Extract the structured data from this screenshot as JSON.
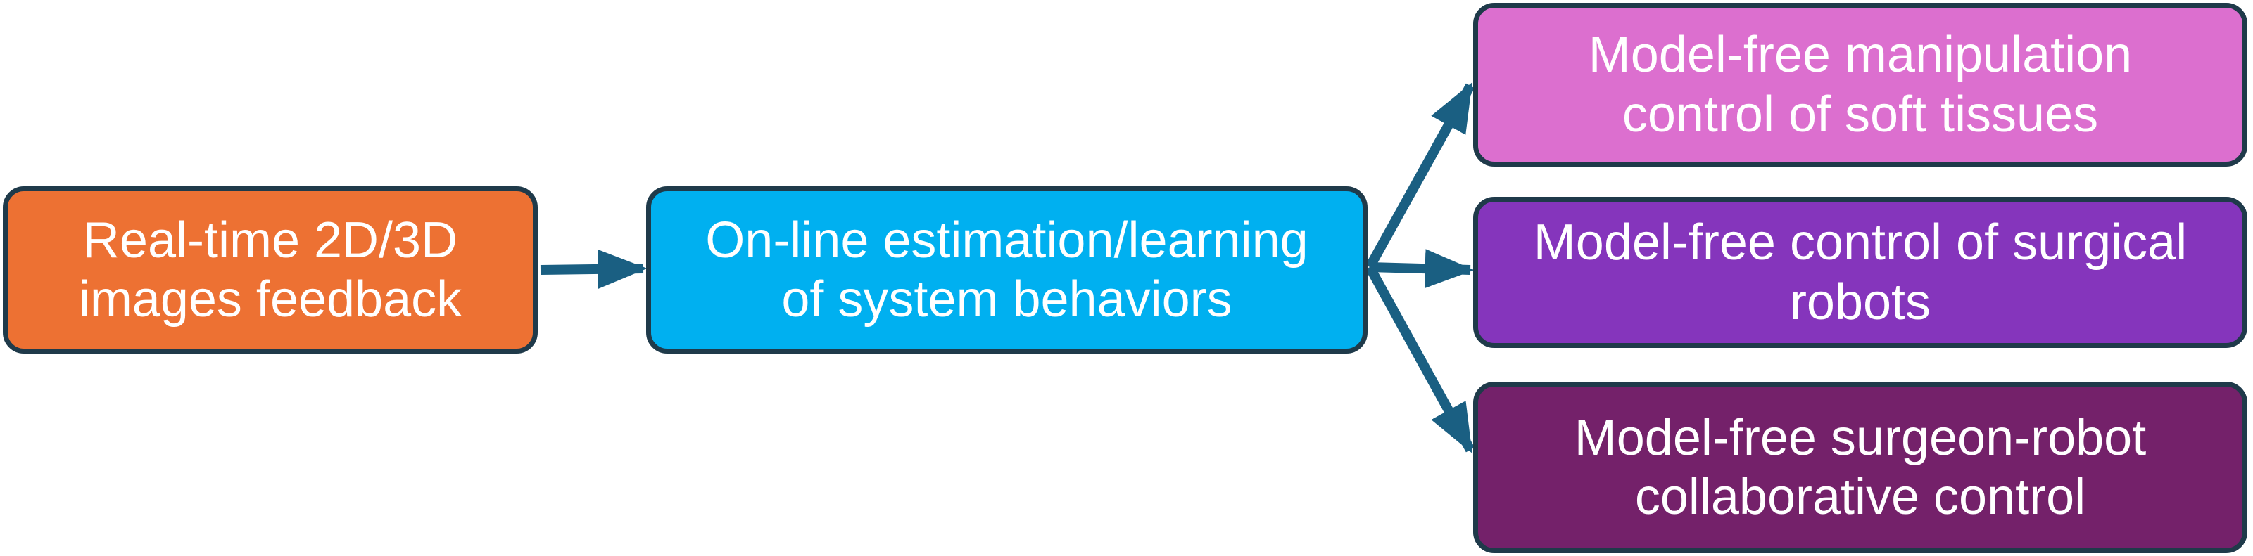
{
  "diagram": {
    "colors": {
      "edge": "#1a5f82",
      "border": "#1f3a4a",
      "input_fill": "#ed7133",
      "learn_fill": "#00b0f0",
      "out1_fill": "#dc6fcf",
      "out2_fill": "#8535bc",
      "out3_fill": "#74216a"
    },
    "nodes": {
      "input": {
        "line1": "Real-time 2D/3D",
        "line2": "images feedback"
      },
      "learn": {
        "line1": "On-line estimation/learning",
        "line2": "of system behaviors"
      },
      "out1": {
        "line1": "Model-free manipulation",
        "line2": "control of soft tissues"
      },
      "out2": {
        "line1": "Model-free control of surgical",
        "line2": "robots"
      },
      "out3": {
        "line1": "Model-free surgeon-robot",
        "line2": "collaborative control"
      }
    },
    "edges": [
      {
        "from": "input",
        "to": "learn"
      },
      {
        "from": "learn",
        "to": "out1"
      },
      {
        "from": "learn",
        "to": "out2"
      },
      {
        "from": "learn",
        "to": "out3"
      }
    ]
  }
}
